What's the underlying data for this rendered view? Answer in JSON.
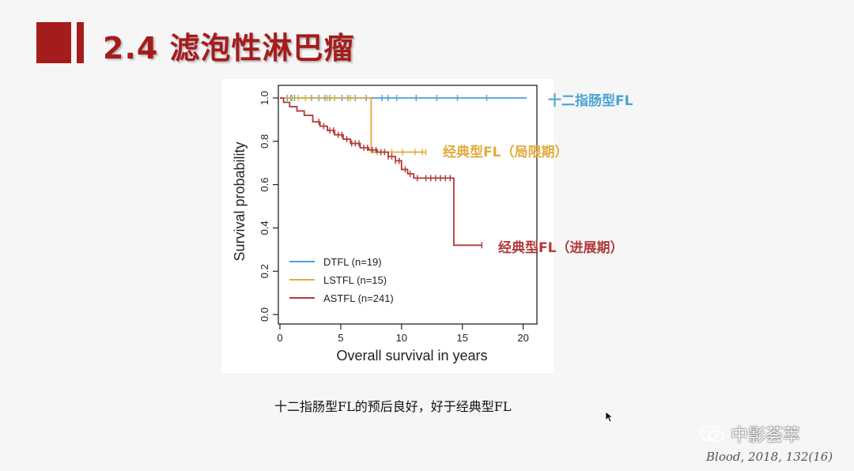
{
  "slide": {
    "title": "2.4 滤泡性淋巴瘤",
    "caption": "十二指肠型FL的预后良好，好于经典型FL",
    "citation": "Blood, 2018, 132(16)",
    "watermark": "中影荟萃",
    "accent_color": "#a51c1c"
  },
  "chart_data": {
    "type": "line",
    "title": "",
    "xlabel": "Overall survival in years",
    "ylabel": "Survival probability",
    "xlim": [
      0,
      21
    ],
    "ylim": [
      0,
      1
    ],
    "xticks": [
      0,
      5,
      10,
      15,
      20
    ],
    "yticks": [
      0.0,
      0.2,
      0.4,
      0.6,
      0.8,
      1.0
    ],
    "ytick_labels": [
      "0.0",
      "0.2",
      "0.4",
      "0.6",
      "0.8",
      "1.0"
    ],
    "grid": false,
    "legend_position": "bottom-left",
    "series": [
      {
        "name": "DTFL (n=19)",
        "color": "#4aa3d4",
        "annotation": "十二指肠型FL",
        "steps": [
          [
            0,
            1.0
          ],
          [
            20.3,
            1.0
          ]
        ],
        "censor": [
          0.6,
          0.9,
          1.2,
          2.6,
          3.2,
          3.7,
          4.1,
          5.1,
          5.6,
          6.2,
          7.1,
          8.4,
          8.9,
          9.6,
          11.2,
          12.9,
          14.6,
          17.0
        ]
      },
      {
        "name": "LSTFL (n=15)",
        "color": "#e0ac3c",
        "annotation": "经典型FL（局限期）",
        "steps": [
          [
            0,
            1.0
          ],
          [
            7.5,
            1.0
          ],
          [
            7.5,
            0.75
          ],
          [
            12.0,
            0.75
          ]
        ],
        "censor": [
          1.0,
          1.5,
          2.1,
          3.9,
          4.5,
          5.8,
          8.0,
          9.2,
          10.1,
          11.1,
          11.7,
          12.0
        ]
      },
      {
        "name": "ASTFL (n=241)",
        "color": "#b03a3a",
        "annotation": "经典型FL（进展期）",
        "steps": [
          [
            0,
            1.0
          ],
          [
            0.3,
            0.98
          ],
          [
            0.8,
            0.96
          ],
          [
            1.4,
            0.94
          ],
          [
            2.0,
            0.92
          ],
          [
            2.7,
            0.89
          ],
          [
            3.3,
            0.87
          ],
          [
            3.9,
            0.85
          ],
          [
            4.5,
            0.83
          ],
          [
            5.2,
            0.81
          ],
          [
            5.8,
            0.79
          ],
          [
            6.6,
            0.77
          ],
          [
            7.3,
            0.76
          ],
          [
            8.0,
            0.75
          ],
          [
            8.9,
            0.73
          ],
          [
            9.5,
            0.71
          ],
          [
            10.0,
            0.67
          ],
          [
            10.5,
            0.65
          ],
          [
            11.0,
            0.63
          ],
          [
            14.3,
            0.63
          ],
          [
            14.3,
            0.32
          ],
          [
            16.6,
            0.32
          ]
        ],
        "censor": [
          3.2,
          3.6,
          4.1,
          4.4,
          4.8,
          5.1,
          5.5,
          5.9,
          6.2,
          6.5,
          6.9,
          7.2,
          7.6,
          7.9,
          8.3,
          8.6,
          8.9,
          9.2,
          9.5,
          9.8,
          10.3,
          10.7,
          11.3,
          12.0,
          12.4,
          12.8,
          13.2,
          13.6,
          14.0,
          16.6
        ]
      }
    ]
  }
}
